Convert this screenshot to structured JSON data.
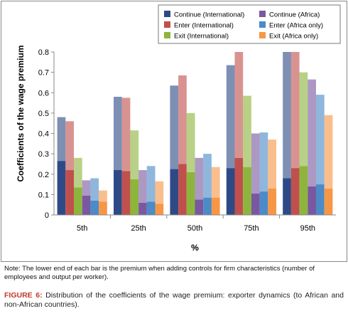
{
  "chart_data": {
    "type": "bar",
    "subtype": "stacked-range",
    "categories": [
      "5th",
      "25th",
      "50th",
      "75th",
      "95th"
    ],
    "xlabel": "%",
    "ylabel": "Coefficients of the wage premium",
    "ylim": [
      0,
      0.8
    ],
    "yticks": [
      "0",
      "0.1",
      "0.2",
      "0.3",
      "0.4",
      "0.5",
      "0.6",
      "0.7",
      "0.8"
    ],
    "legend_position": "top-right",
    "grid": false,
    "series": [
      {
        "name": "Continue (International)",
        "color": "#2E4A86",
        "lower": [
          0.265,
          0.22,
          0.225,
          0.23,
          0.18
        ],
        "upper": [
          0.48,
          0.58,
          0.635,
          0.735,
          0.8
        ]
      },
      {
        "name": "Enter (International)",
        "color": "#C0504D",
        "lower": [
          0.22,
          0.215,
          0.25,
          0.28,
          0.23
        ],
        "upper": [
          0.46,
          0.575,
          0.685,
          0.8,
          0.8
        ]
      },
      {
        "name": "Exit (International)",
        "color": "#8DB53C",
        "lower": [
          0.135,
          0.175,
          0.21,
          0.235,
          0.24
        ],
        "upper": [
          0.28,
          0.415,
          0.5,
          0.585,
          0.7
        ]
      },
      {
        "name": "Continue (Africa)",
        "color": "#7A58A0",
        "lower": [
          0.095,
          0.06,
          0.075,
          0.105,
          0.14
        ],
        "upper": [
          0.17,
          0.22,
          0.28,
          0.4,
          0.665
        ]
      },
      {
        "name": "Enter (Africa only)",
        "color": "#4A8BC8",
        "lower": [
          0.07,
          0.065,
          0.085,
          0.115,
          0.15
        ],
        "upper": [
          0.18,
          0.24,
          0.3,
          0.405,
          0.59
        ]
      },
      {
        "name": "Exit (Africa only)",
        "color": "#F79646",
        "lower": [
          0.065,
          0.055,
          0.085,
          0.13,
          0.13
        ],
        "upper": [
          0.12,
          0.165,
          0.235,
          0.37,
          0.49
        ]
      }
    ]
  },
  "note": "Note: The lower end of each bar is the premium when adding controls for firm characteristics (number of employees and output per worker).",
  "caption": {
    "label": "FIGURE 6:",
    "text": " Distribution of the coefficients of the wage premium: exporter dynamics (to African and non-African countries)."
  }
}
